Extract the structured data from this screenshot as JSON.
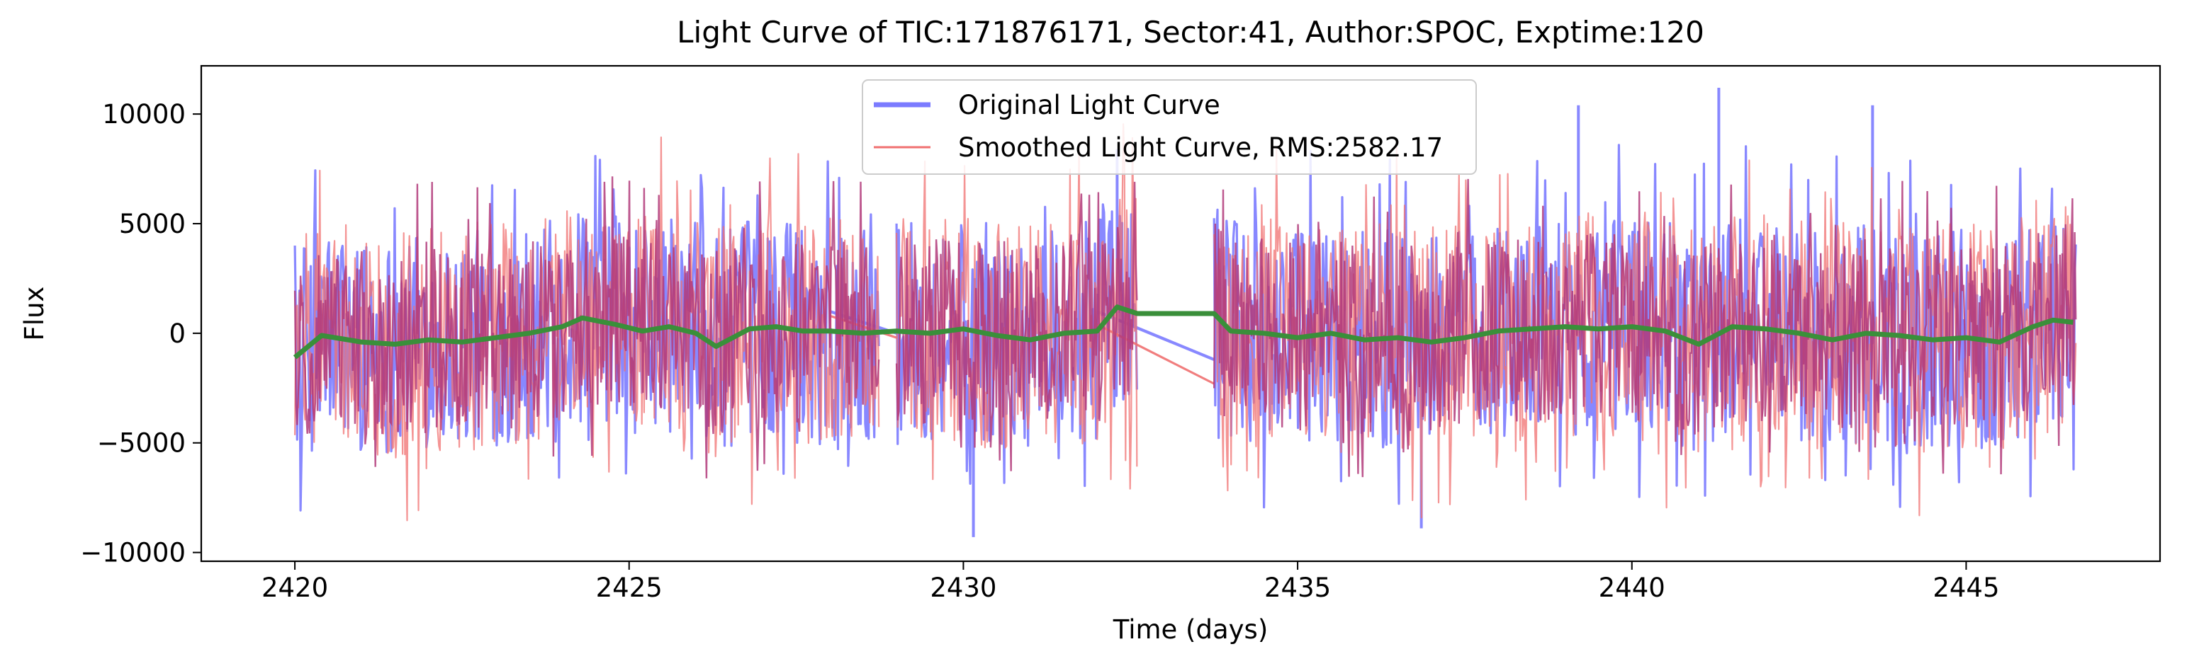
{
  "chart_data": {
    "type": "line",
    "title": "Light Curve of TIC:171876171, Sector:41, Author:SPOC, Exptime:120",
    "xlabel": "Time (days)",
    "ylabel": "Flux",
    "xlim": [
      2418.6,
      2447.9
    ],
    "ylim": [
      -10400,
      12200
    ],
    "x_ticks": [
      2420,
      2425,
      2430,
      2435,
      2440,
      2445
    ],
    "x_tick_labels": [
      "2420",
      "2425",
      "2430",
      "2435",
      "2440",
      "2445"
    ],
    "y_ticks": [
      -10000,
      -5000,
      0,
      5000,
      10000
    ],
    "y_tick_labels": [
      "−10000",
      "−5000",
      "0",
      "5000",
      "10000"
    ],
    "grid": false,
    "legend_position": "top-center",
    "data_gaps": [
      [
        2428.75,
        2429.0
      ],
      [
        2432.6,
        2433.75
      ]
    ],
    "series": [
      {
        "name": "Original Light Curve",
        "color": "#7b7bff",
        "style": "noisy",
        "typical_range": [
          -4800,
          5200
        ],
        "extremes": [
          {
            "x": 2430.15,
            "y": -9300
          },
          {
            "x": 2441.3,
            "y": 11200
          },
          {
            "x": 2436.85,
            "y": -8900
          },
          {
            "x": 2439.2,
            "y": 10400
          },
          {
            "x": 2443.6,
            "y": 10400
          },
          {
            "x": 2432.3,
            "y": 8400
          }
        ],
        "gap_segments": [
          {
            "x": [
              2428.0,
              2429.0
            ],
            "y": [
              1000,
              0
            ]
          },
          {
            "x": [
              2432.0,
              2433.75
            ],
            "y": [
              1000,
              -1200
            ]
          }
        ]
      },
      {
        "name": "Smoothed Light Curve, RMS:2582.17",
        "color": "#f07070",
        "style": "noisy",
        "typical_range": [
          -5000,
          5500
        ],
        "gap_segments": [
          {
            "x": [
              2428.0,
              2429.0
            ],
            "y": [
              800,
              -200
            ]
          },
          {
            "x": [
              2432.0,
              2433.75
            ],
            "y": [
              400,
              -2300
            ]
          }
        ]
      },
      {
        "name": "",
        "color": "#3a8f3a",
        "style": "smooth",
        "x": [
          2420.0,
          2420.4,
          2421.0,
          2421.5,
          2422.0,
          2422.5,
          2423.0,
          2423.5,
          2424.0,
          2424.3,
          2424.8,
          2425.2,
          2425.6,
          2426.0,
          2426.3,
          2426.8,
          2427.2,
          2427.6,
          2428.0,
          2428.5,
          2428.75,
          2429.0,
          2429.5,
          2430.0,
          2430.5,
          2431.0,
          2431.5,
          2432.0,
          2432.3,
          2432.6,
          2433.75,
          2434.0,
          2434.5,
          2435.0,
          2435.5,
          2436.0,
          2436.5,
          2437.0,
          2437.5,
          2438.0,
          2438.5,
          2439.0,
          2439.5,
          2440.0,
          2440.5,
          2441.0,
          2441.5,
          2442.0,
          2442.5,
          2443.0,
          2443.5,
          2444.0,
          2444.5,
          2445.0,
          2445.5,
          2446.0,
          2446.3,
          2446.6
        ],
        "y": [
          -1100,
          -100,
          -400,
          -500,
          -300,
          -400,
          -200,
          0,
          300,
          700,
          400,
          100,
          300,
          0,
          -600,
          200,
          300,
          100,
          100,
          0,
          50,
          100,
          0,
          200,
          -100,
          -300,
          0,
          100,
          1200,
          900,
          900,
          100,
          0,
          -200,
          0,
          -300,
          -200,
          -400,
          -200,
          100,
          200,
          300,
          200,
          300,
          100,
          -500,
          300,
          200,
          0,
          -300,
          0,
          -100,
          -300,
          -200,
          -400,
          300,
          600,
          500
        ]
      }
    ]
  }
}
